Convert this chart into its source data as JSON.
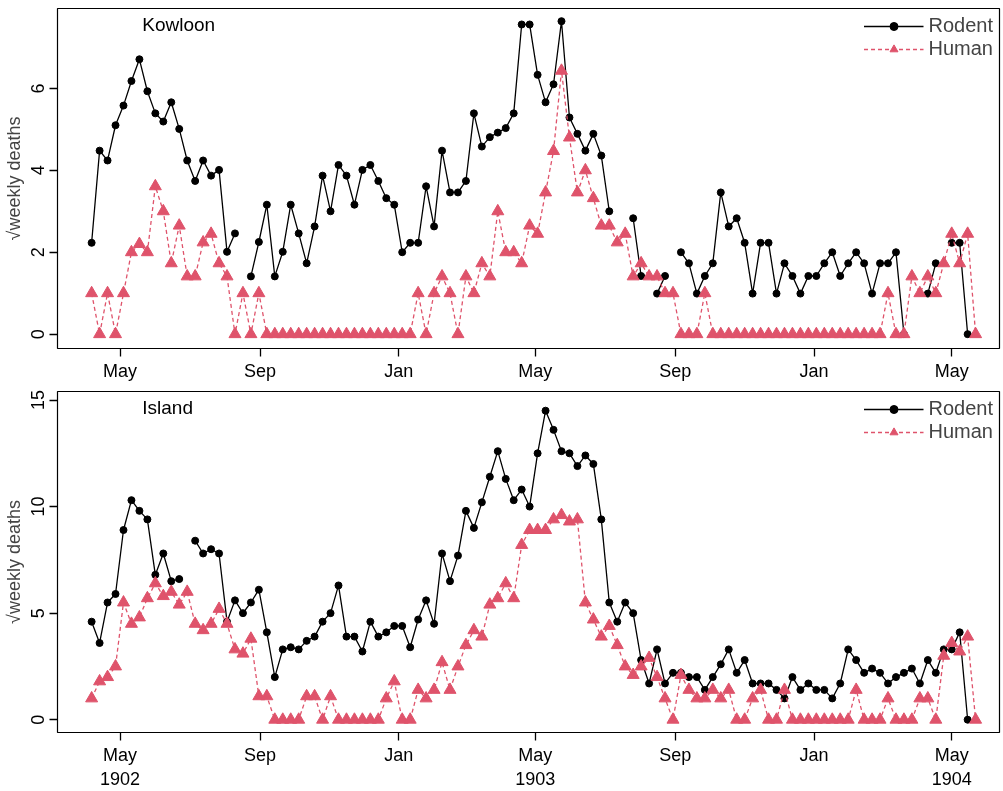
{
  "chart_data": [
    {
      "type": "line",
      "title": "Kowloon",
      "ylabel": "√weekly deaths",
      "x": [
        "1902-04-06",
        "1902-04-13",
        "1902-04-20",
        "1902-04-27",
        "1902-05-04",
        "1902-05-11",
        "1902-05-18",
        "1902-05-25",
        "1902-06-01",
        "1902-06-08",
        "1902-06-15",
        "1902-06-22",
        "1902-06-29",
        "1902-07-06",
        "1902-07-13",
        "1902-07-20",
        "1902-07-27",
        "1902-08-03",
        "1902-08-10",
        "1902-08-17",
        "1902-08-24",
        "1902-08-31",
        "1902-09-07",
        "1902-09-14",
        "1902-09-21",
        "1902-09-28",
        "1902-10-05",
        "1902-10-12",
        "1902-10-19",
        "1902-10-26",
        "1902-11-02",
        "1902-11-09",
        "1902-11-16",
        "1902-11-23",
        "1902-11-30",
        "1902-12-07",
        "1902-12-14",
        "1902-12-21",
        "1902-12-28",
        "1903-01-04",
        "1903-01-11",
        "1903-01-18",
        "1903-01-25",
        "1903-02-01",
        "1903-02-08",
        "1903-02-15",
        "1903-02-22",
        "1903-03-01",
        "1903-03-08",
        "1903-03-15",
        "1903-03-22",
        "1903-03-29",
        "1903-04-05",
        "1903-04-12",
        "1903-04-19",
        "1903-04-26",
        "1903-05-03",
        "1903-05-10",
        "1903-05-17",
        "1903-05-24",
        "1903-05-31",
        "1903-06-07",
        "1903-06-14",
        "1903-06-21",
        "1903-06-28",
        "1903-07-05",
        "1903-07-12",
        "1903-07-19",
        "1903-07-26",
        "1903-08-02",
        "1903-08-09",
        "1903-08-16",
        "1903-08-23",
        "1903-08-30",
        "1903-09-06",
        "1903-09-13",
        "1903-09-20",
        "1903-09-27",
        "1903-10-04",
        "1903-10-11",
        "1903-10-18",
        "1903-10-25",
        "1903-11-01",
        "1903-11-08",
        "1903-11-15",
        "1903-11-22",
        "1903-11-29",
        "1903-12-06",
        "1903-12-13",
        "1903-12-20",
        "1903-12-27",
        "1904-01-03",
        "1904-01-10",
        "1904-01-17",
        "1904-01-24",
        "1904-01-31",
        "1904-02-07",
        "1904-02-14",
        "1904-02-21",
        "1904-02-28",
        "1904-03-06",
        "1904-03-13",
        "1904-03-20",
        "1904-03-27",
        "1904-04-03",
        "1904-04-10",
        "1904-04-17",
        "1904-04-24",
        "1904-05-01",
        "1904-05-08",
        "1904-05-15",
        "1904-05-22"
      ],
      "xlim": [
        "1902-03-07",
        "1904-06-12"
      ],
      "xticks": [
        {
          "value": "1902-05-01",
          "label": "May"
        },
        {
          "value": "1902-09-01",
          "label": "Sep"
        },
        {
          "value": "1903-01-01",
          "label": "Jan"
        },
        {
          "value": "1903-05-01",
          "label": "May"
        },
        {
          "value": "1903-09-01",
          "label": "Sep"
        },
        {
          "value": "1904-01-01",
          "label": "Jan"
        },
        {
          "value": "1904-05-01",
          "label": "May"
        }
      ],
      "ylim": [
        -0.35,
        7.95
      ],
      "yticks": [
        0,
        2,
        4,
        6
      ],
      "grid": false,
      "legend": "top right",
      "series": [
        {
          "name": "Rodent",
          "color": "#000000",
          "marker": "circle",
          "line_style": "solid",
          "values": [
            2.23,
            4.48,
            4.24,
            5.1,
            5.58,
            6.18,
            6.71,
            5.93,
            5.39,
            5.19,
            5.66,
            5.01,
            4.24,
            3.74,
            4.24,
            3.87,
            4.01,
            2.01,
            2.46,
            null,
            1.41,
            2.25,
            3.16,
            1.41,
            2.01,
            3.16,
            2.46,
            1.73,
            2.63,
            3.87,
            3.0,
            4.13,
            3.87,
            3.16,
            4.01,
            4.13,
            3.74,
            3.32,
            3.16,
            2.0,
            2.23,
            2.23,
            3.61,
            2.63,
            4.48,
            3.46,
            3.46,
            3.74,
            5.39,
            4.58,
            4.81,
            4.92,
            5.03,
            5.39,
            7.56,
            7.56,
            6.33,
            5.66,
            6.1,
            7.64,
            5.29,
            4.89,
            4.48,
            4.89,
            4.36,
            3.0,
            null,
            null,
            2.83,
            1.42,
            null,
            0.99,
            1.42,
            null,
            2.0,
            1.73,
            0.99,
            1.42,
            1.73,
            3.46,
            2.63,
            2.83,
            2.23,
            0.99,
            2.23,
            2.23,
            0.99,
            1.73,
            1.42,
            0.99,
            1.42,
            1.42,
            1.73,
            2.0,
            1.42,
            1.73,
            2.0,
            1.73,
            0.99,
            1.73,
            1.73,
            2.0,
            0,
            null,
            null,
            0.99,
            1.73,
            null,
            2.23,
            2.23,
            0,
            null
          ]
        },
        {
          "name": "Human",
          "color": "#df536b",
          "marker": "triangle",
          "line_style": "dashed",
          "values": [
            1,
            0,
            1,
            0,
            1,
            2.0,
            2.2,
            2.0,
            3.61,
            3.0,
            1.73,
            2.65,
            1.41,
            1.41,
            2.24,
            2.45,
            1.73,
            1.41,
            0,
            1,
            0,
            1,
            0,
            0,
            0,
            0,
            0,
            0,
            0,
            0,
            0,
            0,
            0,
            0,
            0,
            0,
            0,
            0,
            0,
            0,
            0,
            1,
            0,
            1,
            1.41,
            1,
            0,
            1.41,
            1,
            1.73,
            1.41,
            3.0,
            2.0,
            2.0,
            1.73,
            2.65,
            2.45,
            3.46,
            4.47,
            6.43,
            4.8,
            3.46,
            4.0,
            3.32,
            2.65,
            2.65,
            2.24,
            2.45,
            1.41,
            1.73,
            1.41,
            1.41,
            1,
            1,
            0,
            0,
            0,
            1,
            0,
            0,
            0,
            0,
            0,
            0,
            0,
            0,
            0,
            0,
            0,
            0,
            0,
            0,
            0,
            0,
            0,
            0,
            0,
            0,
            0,
            0,
            1,
            0,
            0,
            1.41,
            1,
            1.41,
            1,
            1.73,
            2.45,
            1.73,
            2.45,
            0
          ]
        }
      ]
    },
    {
      "type": "line",
      "title": "Island",
      "ylabel": "√weekly deaths",
      "x": [
        "1902-04-06",
        "1902-04-13",
        "1902-04-20",
        "1902-04-27",
        "1902-05-04",
        "1902-05-11",
        "1902-05-18",
        "1902-05-25",
        "1902-06-01",
        "1902-06-08",
        "1902-06-15",
        "1902-06-22",
        "1902-06-29",
        "1902-07-06",
        "1902-07-13",
        "1902-07-20",
        "1902-07-27",
        "1902-08-03",
        "1902-08-10",
        "1902-08-17",
        "1902-08-24",
        "1902-08-31",
        "1902-09-07",
        "1902-09-14",
        "1902-09-21",
        "1902-09-28",
        "1902-10-05",
        "1902-10-12",
        "1902-10-19",
        "1902-10-26",
        "1902-11-02",
        "1902-11-09",
        "1902-11-16",
        "1902-11-23",
        "1902-11-30",
        "1902-12-07",
        "1902-12-14",
        "1902-12-21",
        "1902-12-28",
        "1903-01-04",
        "1903-01-11",
        "1903-01-18",
        "1903-01-25",
        "1903-02-01",
        "1903-02-08",
        "1903-02-15",
        "1903-02-22",
        "1903-03-01",
        "1903-03-08",
        "1903-03-15",
        "1903-03-22",
        "1903-03-29",
        "1903-04-05",
        "1903-04-12",
        "1903-04-19",
        "1903-04-26",
        "1903-05-03",
        "1903-05-10",
        "1903-05-17",
        "1903-05-24",
        "1903-05-31",
        "1903-06-07",
        "1903-06-14",
        "1903-06-21",
        "1903-06-28",
        "1903-07-05",
        "1903-07-12",
        "1903-07-19",
        "1903-07-26",
        "1903-08-02",
        "1903-08-09",
        "1903-08-16",
        "1903-08-23",
        "1903-08-30",
        "1903-09-06",
        "1903-09-13",
        "1903-09-20",
        "1903-09-27",
        "1903-10-04",
        "1903-10-11",
        "1903-10-18",
        "1903-10-25",
        "1903-11-01",
        "1903-11-08",
        "1903-11-15",
        "1903-11-22",
        "1903-11-29",
        "1903-12-06",
        "1903-12-13",
        "1903-12-20",
        "1903-12-27",
        "1904-01-03",
        "1904-01-10",
        "1904-01-17",
        "1904-01-24",
        "1904-01-31",
        "1904-02-07",
        "1904-02-14",
        "1904-02-21",
        "1904-02-28",
        "1904-03-06",
        "1904-03-13",
        "1904-03-20",
        "1904-03-27",
        "1904-04-03",
        "1904-04-10",
        "1904-04-17",
        "1904-04-24",
        "1904-05-01",
        "1904-05-08",
        "1904-05-15",
        "1904-05-22"
      ],
      "xlim": [
        "1902-03-07",
        "1904-06-12"
      ],
      "xticks": [
        {
          "value": "1902-05-01",
          "label": "May\n1902"
        },
        {
          "value": "1902-09-01",
          "label": "Sep"
        },
        {
          "value": "1903-01-01",
          "label": "Jan"
        },
        {
          "value": "1903-05-01",
          "label": "May\n1903"
        },
        {
          "value": "1903-09-01",
          "label": "Sep"
        },
        {
          "value": "1904-01-01",
          "label": "Jan"
        },
        {
          "value": "1904-05-01",
          "label": "May\n1904"
        }
      ],
      "ylim": [
        -0.6,
        15.4
      ],
      "yticks": [
        0,
        5,
        10,
        15
      ],
      "grid": false,
      "legend": "top right",
      "series": [
        {
          "name": "Rodent",
          "color": "#000000",
          "marker": "circle",
          "line_style": "solid",
          "values": [
            4.6,
            3.6,
            5.5,
            5.9,
            8.9,
            10.3,
            9.8,
            9.4,
            6.8,
            7.8,
            6.5,
            6.6,
            null,
            8.4,
            7.8,
            8.0,
            7.8,
            4.6,
            5.6,
            5.0,
            5.5,
            6.1,
            4.1,
            2.0,
            3.3,
            3.4,
            3.3,
            3.7,
            3.9,
            4.6,
            5.0,
            6.3,
            3.9,
            3.9,
            3.2,
            4.6,
            3.9,
            4.1,
            4.4,
            4.4,
            3.4,
            4.7,
            5.6,
            4.5,
            7.8,
            6.5,
            7.7,
            9.8,
            9.0,
            10.2,
            11.4,
            12.6,
            11.3,
            10.3,
            10.8,
            10.0,
            12.5,
            14.5,
            13.6,
            12.6,
            12.5,
            11.9,
            12.4,
            12.0,
            9.4,
            5.5,
            4.6,
            5.5,
            5.0,
            2.8,
            1.7,
            3.3,
            1.7,
            2.2,
            2.2,
            2.0,
            2.0,
            1.4,
            2.0,
            2.6,
            3.3,
            2.2,
            2.8,
            1.7,
            1.7,
            1.7,
            1.4,
            1.0,
            2.0,
            1.4,
            1.7,
            1.4,
            1.4,
            1.0,
            1.7,
            3.3,
            2.8,
            2.2,
            2.4,
            2.2,
            1.7,
            2.0,
            2.2,
            2.4,
            1.7,
            2.8,
            2.2,
            3.3,
            3.3,
            4.1,
            0,
            null
          ]
        },
        {
          "name": "Human",
          "color": "#df536b",
          "marker": "triangle",
          "line_style": "dashed",
          "values": [
            1.0,
            1.8,
            2.0,
            2.5,
            5.5,
            4.5,
            4.8,
            5.7,
            6.4,
            5.8,
            6.0,
            5.4,
            6.0,
            4.5,
            4.2,
            4.5,
            5.2,
            4.5,
            3.3,
            3.1,
            3.8,
            1.1,
            1.1,
            0,
            0,
            0,
            0,
            1.1,
            1.1,
            0,
            1.1,
            0,
            0,
            0,
            0,
            0,
            0,
            1.0,
            1.8,
            0,
            0,
            1.4,
            1.0,
            1.4,
            2.7,
            1.4,
            2.5,
            3.5,
            4.2,
            3.9,
            5.4,
            5.7,
            6.4,
            5.7,
            8.2,
            8.9,
            8.9,
            8.9,
            9.4,
            9.6,
            9.3,
            9.4,
            5.5,
            4.7,
            3.9,
            4.4,
            3.5,
            2.5,
            2.1,
            2.5,
            2.9,
            2.0,
            1.0,
            0,
            2.1,
            1.4,
            1.0,
            1.0,
            1.4,
            1.0,
            1.4,
            0,
            0,
            1.0,
            1.4,
            0,
            0,
            1.4,
            0,
            0,
            0,
            0,
            0,
            0,
            0,
            0,
            1.4,
            0,
            0,
            0,
            1.0,
            0,
            0,
            0,
            1.0,
            1.0,
            0,
            3.0,
            3.6,
            3.2,
            3.9,
            0
          ]
        }
      ]
    }
  ]
}
